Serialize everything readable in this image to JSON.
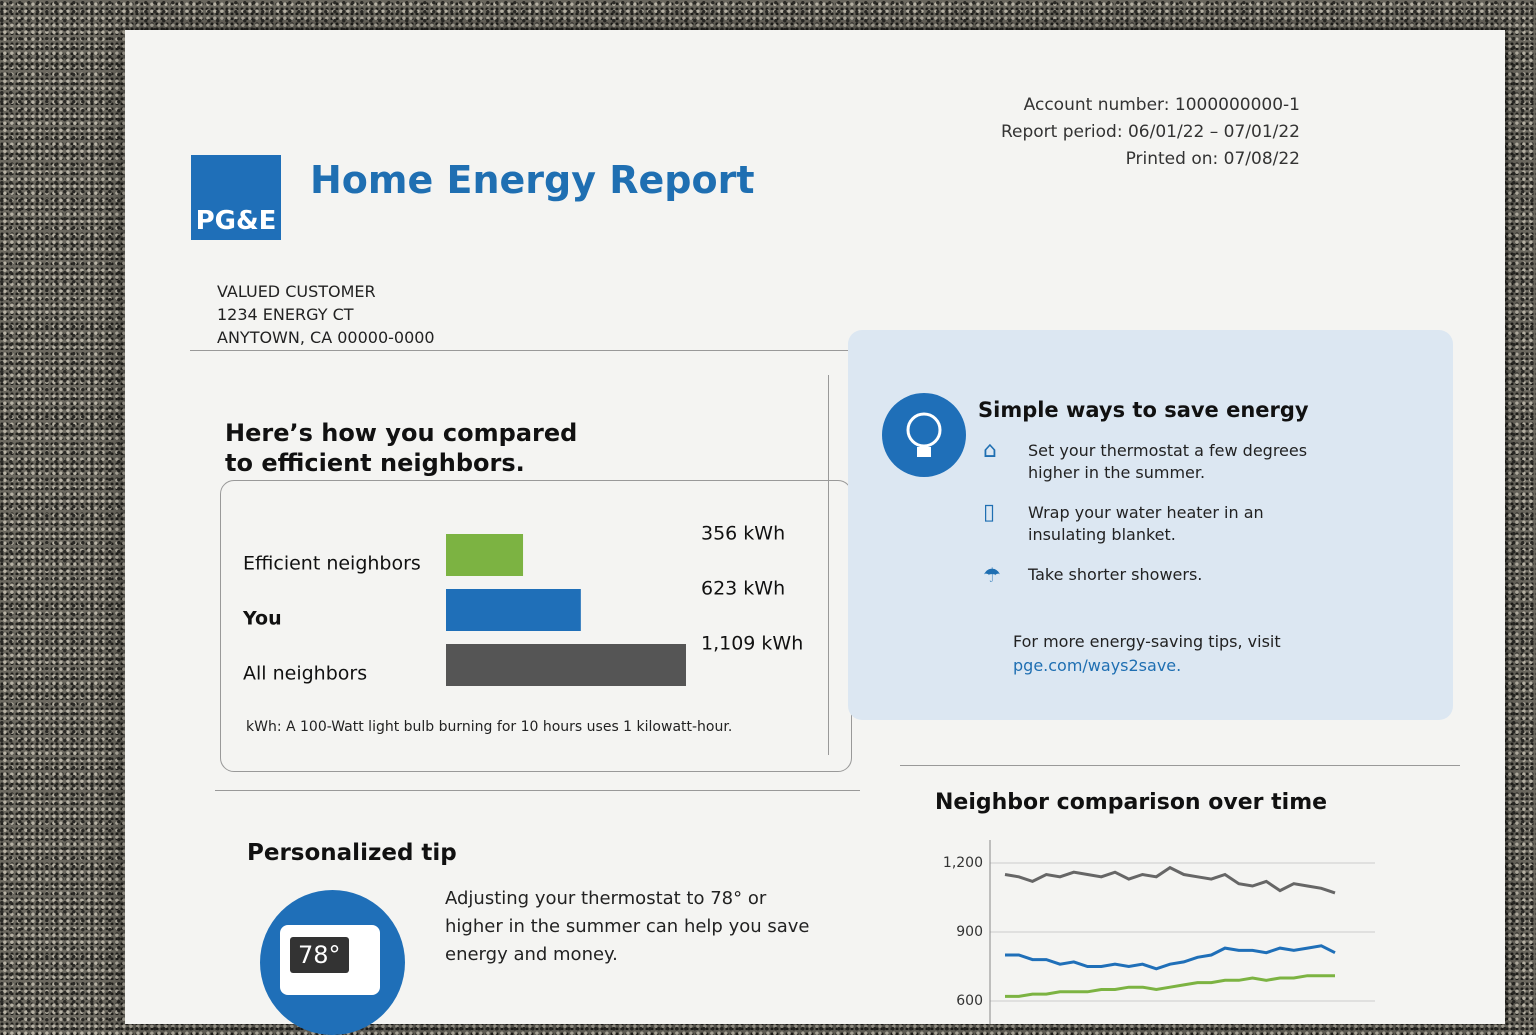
{
  "header": {
    "logo": "PG&E",
    "title": "Home Energy Report",
    "account": "Account number: 1000000000-1",
    "period": "Report period: 06/01/22 – 07/01/22",
    "printed": "Printed on: 07/08/22"
  },
  "address": [
    "VALUED CUSTOMER",
    "1234 ENERGY CT",
    "ANYTOWN, CA 00000-0000"
  ],
  "comparison": {
    "title": "Here’s how you compared to efficient neighbors.",
    "rows": [
      {
        "label": "Efficient neighbors",
        "value": 356,
        "value_label": "356 kWh",
        "color": "#7cb342"
      },
      {
        "label": "You",
        "value": 623,
        "value_label": "623 kWh",
        "color": "#1f6fb8"
      },
      {
        "label": "All neighbors",
        "value": 1109,
        "value_label": "1,109 kWh",
        "color": "#555555"
      }
    ],
    "note": "kWh: A 100-Watt light bulb burning for 10 hours uses 1 kilowatt-hour."
  },
  "tips": {
    "title": "Simple ways to save energy",
    "items": [
      "Set your thermostat a few degrees higher in the summer.",
      "Wrap your water heater in an insulating blanket.",
      "Take shorter showers."
    ],
    "more": "For more energy-saving tips, visit",
    "link": "pge.com/ways2save."
  },
  "personal": {
    "title": "Personalized tip",
    "display": "78°",
    "text": "Adjusting your thermostat to 78° or higher in the summer can help you save energy and money."
  },
  "chart_data": {
    "type": "line",
    "title": "Neighbor comparison over time",
    "ylim": [
      500,
      1300
    ],
    "yticks": [
      600,
      900,
      {
        "value": 1200,
        "label": "1,200"
      }
    ],
    "series": [
      {
        "color": "#666666",
        "values": [
          1150,
          1140,
          1120,
          1150,
          1140,
          1160,
          1150,
          1140,
          1160,
          1130,
          1150,
          1140,
          1180,
          1150,
          1140,
          1130,
          1150,
          1110,
          1100,
          1120,
          1080,
          1110,
          1100,
          1090,
          1070
        ]
      },
      {
        "color": "#1f6fb8",
        "values": [
          800,
          800,
          780,
          780,
          760,
          770,
          750,
          750,
          760,
          750,
          760,
          740,
          760,
          770,
          790,
          800,
          830,
          820,
          820,
          810,
          830,
          820,
          830,
          840,
          810
        ]
      },
      {
        "color": "#7cb342",
        "values": [
          620,
          620,
          630,
          630,
          640,
          640,
          640,
          650,
          650,
          660,
          660,
          650,
          660,
          670,
          680,
          680,
          690,
          690,
          700,
          690,
          700,
          700,
          710,
          710,
          710
        ]
      }
    ]
  }
}
